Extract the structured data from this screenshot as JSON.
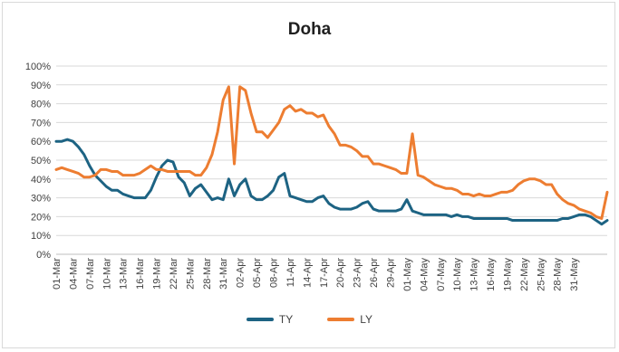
{
  "chart_data": {
    "type": "line",
    "title": "Doha",
    "xlabel": "",
    "ylabel": "",
    "ylim": [
      0,
      1
    ],
    "y_ticks": [
      "0%",
      "10%",
      "20%",
      "30%",
      "40%",
      "50%",
      "60%",
      "70%",
      "80%",
      "90%",
      "100%"
    ],
    "x_tick_labels": [
      "01-Mar",
      "04-Mar",
      "07-Mar",
      "10-Mar",
      "13-Mar",
      "16-Mar",
      "19-Mar",
      "22-Mar",
      "25-Mar",
      "28-Mar",
      "31-Mar",
      "02-Apr",
      "05-Apr",
      "08-Apr",
      "11-Apr",
      "14-Apr",
      "17-Apr",
      "20-Apr",
      "23-Apr",
      "26-Apr",
      "29-Apr",
      "01-May",
      "04-May",
      "07-May",
      "10-May",
      "13-May",
      "16-May",
      "19-May",
      "22-May",
      "25-May",
      "28-May",
      "31-May"
    ],
    "gridlines": true,
    "legend_position": "bottom",
    "series": [
      {
        "name": "TY",
        "color": "#1d6383",
        "values": [
          0.6,
          0.6,
          0.61,
          0.6,
          0.57,
          0.53,
          0.47,
          0.42,
          0.39,
          0.36,
          0.34,
          0.34,
          0.32,
          0.31,
          0.3,
          0.3,
          0.3,
          0.34,
          0.41,
          0.47,
          0.5,
          0.49,
          0.41,
          0.38,
          0.31,
          0.35,
          0.37,
          0.33,
          0.29,
          0.3,
          0.29,
          0.4,
          0.31,
          0.37,
          0.4,
          0.31,
          0.29,
          0.29,
          0.31,
          0.34,
          0.41,
          0.43,
          0.31,
          0.3,
          0.29,
          0.28,
          0.28,
          0.3,
          0.31,
          0.27,
          0.25,
          0.24,
          0.24,
          0.24,
          0.25,
          0.27,
          0.28,
          0.24,
          0.23,
          0.23,
          0.23,
          0.23,
          0.24,
          0.29,
          0.23,
          0.22,
          0.21,
          0.21,
          0.21,
          0.21,
          0.21,
          0.2,
          0.21,
          0.2,
          0.2,
          0.19,
          0.19,
          0.19,
          0.19,
          0.19,
          0.19,
          0.19,
          0.18,
          0.18,
          0.18,
          0.18,
          0.18,
          0.18,
          0.18,
          0.18,
          0.18,
          0.19,
          0.19,
          0.2,
          0.21,
          0.21,
          0.2,
          0.18,
          0.16,
          0.18
        ]
      },
      {
        "name": "LY",
        "color": "#ed7d31",
        "values": [
          0.45,
          0.46,
          0.45,
          0.44,
          0.43,
          0.41,
          0.41,
          0.42,
          0.45,
          0.45,
          0.44,
          0.44,
          0.42,
          0.42,
          0.42,
          0.43,
          0.45,
          0.47,
          0.45,
          0.45,
          0.44,
          0.44,
          0.44,
          0.44,
          0.44,
          0.42,
          0.42,
          0.46,
          0.53,
          0.65,
          0.82,
          0.89,
          0.48,
          0.89,
          0.87,
          0.75,
          0.65,
          0.65,
          0.62,
          0.66,
          0.7,
          0.77,
          0.79,
          0.76,
          0.77,
          0.75,
          0.75,
          0.73,
          0.74,
          0.68,
          0.64,
          0.58,
          0.58,
          0.57,
          0.55,
          0.52,
          0.52,
          0.48,
          0.48,
          0.47,
          0.46,
          0.45,
          0.43,
          0.43,
          0.64,
          0.42,
          0.41,
          0.39,
          0.37,
          0.36,
          0.35,
          0.35,
          0.34,
          0.32,
          0.32,
          0.31,
          0.32,
          0.31,
          0.31,
          0.32,
          0.33,
          0.33,
          0.34,
          0.37,
          0.39,
          0.4,
          0.4,
          0.39,
          0.37,
          0.37,
          0.32,
          0.29,
          0.27,
          0.26,
          0.24,
          0.23,
          0.22,
          0.2,
          0.19,
          0.33
        ]
      }
    ]
  }
}
